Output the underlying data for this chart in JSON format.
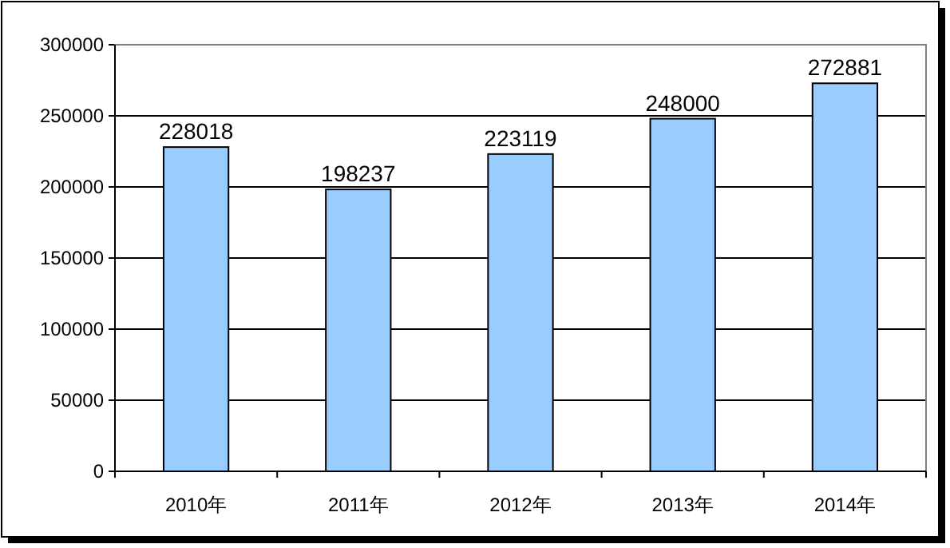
{
  "chart_data": {
    "type": "bar",
    "categories": [
      "2010年",
      "2011年",
      "2012年",
      "2013年",
      "2014年"
    ],
    "values": [
      228018,
      198237,
      223119,
      248000,
      272881
    ],
    "color": "#99ccff",
    "ylim": [
      0,
      300000
    ],
    "yticks": [
      0,
      50000,
      100000,
      150000,
      200000,
      250000,
      300000
    ],
    "grid": "y",
    "data_labels": true
  }
}
